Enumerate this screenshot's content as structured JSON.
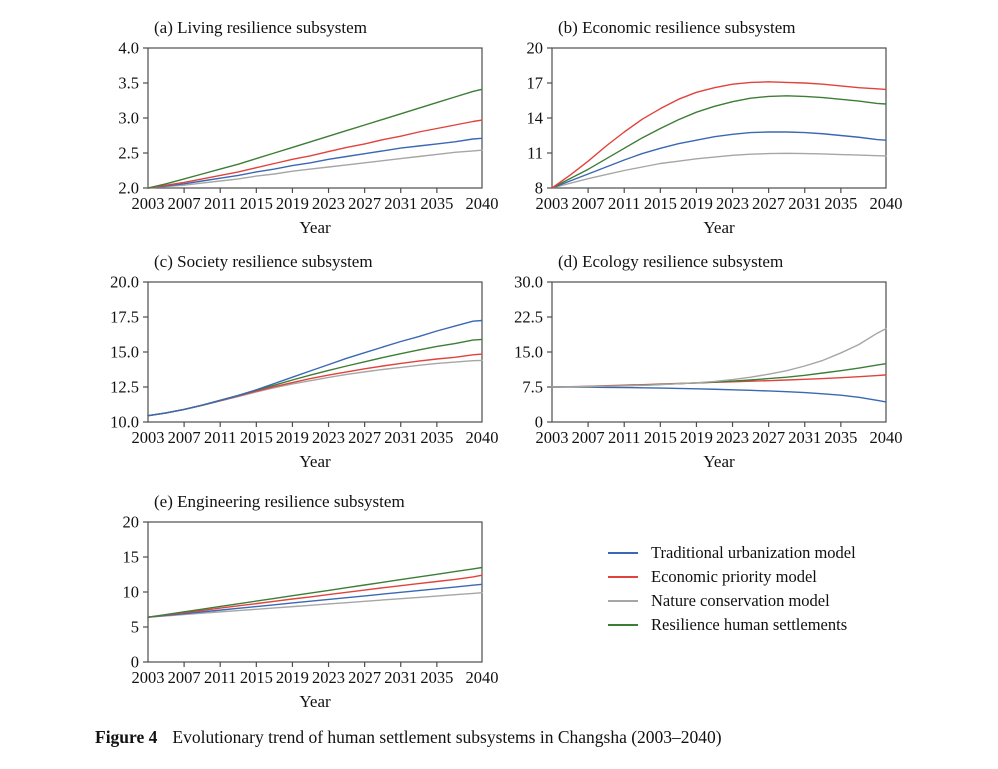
{
  "figure": {
    "caption_label": "Figure 4",
    "caption_text": "Evolutionary trend of human settlement subsystems in Changsha (2003–2040)"
  },
  "legend": {
    "items": [
      {
        "label": "Traditional urbanization model",
        "color": "blue"
      },
      {
        "label": "Economic priority model",
        "color": "red"
      },
      {
        "label": "Nature conservation model",
        "color": "gray"
      },
      {
        "label": "Resilience human settlements",
        "color": "green"
      }
    ]
  },
  "colors": {
    "blue": "#3A68B4",
    "red": "#E2423C",
    "gray": "#A6A6A6",
    "green": "#3C7E36",
    "axis": "#4D4D4D"
  },
  "chart_data": [
    {
      "id": "a",
      "type": "line",
      "title": "(a) Living resilience subsystem",
      "xlabel": "Year",
      "xlim": [
        2003,
        2040
      ],
      "xticks": [
        2003,
        2007,
        2011,
        2015,
        2019,
        2023,
        2027,
        2031,
        2035,
        2040
      ],
      "xtick_labels": [
        "2003",
        "2007",
        "2011",
        "2015",
        "2019",
        "2023",
        "2027",
        "2031",
        "2035",
        "2040"
      ],
      "ylim": [
        2.0,
        4.0
      ],
      "yticks": [
        2.0,
        2.5,
        3.0,
        3.5,
        4.0
      ],
      "ytick_labels": [
        "2.0",
        "2.5",
        "3.0",
        "3.5",
        "4.0"
      ],
      "x": [
        2003,
        2005,
        2007,
        2009,
        2011,
        2013,
        2015,
        2017,
        2019,
        2021,
        2023,
        2025,
        2027,
        2029,
        2031,
        2033,
        2035,
        2037,
        2039,
        2040
      ],
      "series": [
        {
          "name": "Nature conservation model",
          "color": "gray",
          "values": [
            2.0,
            2.02,
            2.04,
            2.07,
            2.1,
            2.13,
            2.17,
            2.2,
            2.24,
            2.27,
            2.3,
            2.33,
            2.36,
            2.39,
            2.42,
            2.45,
            2.48,
            2.51,
            2.53,
            2.54
          ]
        },
        {
          "name": "Traditional urbanization model",
          "color": "blue",
          "values": [
            2.0,
            2.03,
            2.06,
            2.1,
            2.14,
            2.18,
            2.23,
            2.27,
            2.32,
            2.36,
            2.41,
            2.45,
            2.49,
            2.53,
            2.57,
            2.6,
            2.63,
            2.66,
            2.7,
            2.71
          ]
        },
        {
          "name": "Economic priority model",
          "color": "red",
          "values": [
            2.0,
            2.04,
            2.08,
            2.13,
            2.18,
            2.23,
            2.29,
            2.35,
            2.41,
            2.46,
            2.52,
            2.58,
            2.63,
            2.69,
            2.74,
            2.8,
            2.85,
            2.9,
            2.95,
            2.97
          ]
        },
        {
          "name": "Resilience human settlements",
          "color": "green",
          "values": [
            2.0,
            2.06,
            2.13,
            2.2,
            2.27,
            2.34,
            2.42,
            2.5,
            2.58,
            2.66,
            2.74,
            2.82,
            2.9,
            2.98,
            3.06,
            3.14,
            3.22,
            3.3,
            3.38,
            3.41
          ]
        }
      ]
    },
    {
      "id": "b",
      "type": "line",
      "title": "(b) Economic resilience subsystem",
      "xlabel": "Year",
      "xlim": [
        2003,
        2040
      ],
      "xticks": [
        2003,
        2007,
        2011,
        2015,
        2019,
        2023,
        2027,
        2031,
        2035,
        2040
      ],
      "xtick_labels": [
        "2003",
        "2007",
        "2011",
        "2015",
        "2019",
        "2023",
        "2027",
        "2031",
        "2035",
        "2040"
      ],
      "ylim": [
        8,
        20
      ],
      "yticks": [
        8,
        11,
        14,
        17,
        20
      ],
      "ytick_labels": [
        "8",
        "11",
        "14",
        "17",
        "20"
      ],
      "x": [
        2003,
        2005,
        2007,
        2009,
        2011,
        2013,
        2015,
        2017,
        2019,
        2021,
        2023,
        2025,
        2027,
        2029,
        2031,
        2033,
        2035,
        2037,
        2039,
        2040
      ],
      "series": [
        {
          "name": "Nature conservation model",
          "color": "gray",
          "values": [
            8.0,
            8.4,
            8.8,
            9.15,
            9.5,
            9.8,
            10.1,
            10.3,
            10.5,
            10.65,
            10.8,
            10.9,
            10.95,
            10.97,
            10.95,
            10.92,
            10.87,
            10.82,
            10.77,
            10.75
          ]
        },
        {
          "name": "Traditional urbanization model",
          "color": "blue",
          "values": [
            8.0,
            8.6,
            9.2,
            9.8,
            10.4,
            10.95,
            11.4,
            11.8,
            12.1,
            12.4,
            12.6,
            12.75,
            12.8,
            12.8,
            12.75,
            12.65,
            12.5,
            12.35,
            12.15,
            12.1
          ]
        },
        {
          "name": "Resilience human settlements",
          "color": "green",
          "values": [
            8.0,
            8.8,
            9.6,
            10.5,
            11.4,
            12.3,
            13.1,
            13.85,
            14.5,
            15.0,
            15.4,
            15.7,
            15.85,
            15.9,
            15.85,
            15.75,
            15.6,
            15.45,
            15.25,
            15.2
          ]
        },
        {
          "name": "Economic priority model",
          "color": "red",
          "values": [
            8.0,
            9.1,
            10.3,
            11.6,
            12.8,
            13.9,
            14.8,
            15.6,
            16.2,
            16.6,
            16.9,
            17.05,
            17.1,
            17.05,
            17.0,
            16.9,
            16.75,
            16.6,
            16.5,
            16.45
          ]
        }
      ]
    },
    {
      "id": "c",
      "type": "line",
      "title": "(c) Society resilience subsystem",
      "xlabel": "Year",
      "xlim": [
        2003,
        2040
      ],
      "xticks": [
        2003,
        2007,
        2011,
        2015,
        2019,
        2023,
        2027,
        2031,
        2035,
        2040
      ],
      "xtick_labels": [
        "2003",
        "2007",
        "2011",
        "2015",
        "2019",
        "2023",
        "2027",
        "2031",
        "2035",
        "2040"
      ],
      "ylim": [
        10.0,
        20.0
      ],
      "yticks": [
        10.0,
        12.5,
        15.0,
        17.5,
        20.0
      ],
      "ytick_labels": [
        "10.0",
        "12.5",
        "15.0",
        "17.5",
        "20.0"
      ],
      "x": [
        2003,
        2005,
        2007,
        2009,
        2011,
        2013,
        2015,
        2017,
        2019,
        2021,
        2023,
        2025,
        2027,
        2029,
        2031,
        2033,
        2035,
        2037,
        2039,
        2040
      ],
      "series": [
        {
          "name": "Nature conservation model",
          "color": "gray",
          "values": [
            10.45,
            10.65,
            10.9,
            11.18,
            11.5,
            11.82,
            12.15,
            12.45,
            12.72,
            12.95,
            13.18,
            13.4,
            13.58,
            13.75,
            13.9,
            14.05,
            14.18,
            14.28,
            14.38,
            14.4
          ]
        },
        {
          "name": "Economic priority model",
          "color": "red",
          "values": [
            10.45,
            10.65,
            10.9,
            11.2,
            11.52,
            11.86,
            12.2,
            12.52,
            12.82,
            13.1,
            13.35,
            13.58,
            13.8,
            14.0,
            14.18,
            14.35,
            14.5,
            14.62,
            14.8,
            14.85
          ]
        },
        {
          "name": "Resilience human settlements",
          "color": "green",
          "values": [
            10.45,
            10.65,
            10.9,
            11.2,
            11.55,
            11.9,
            12.28,
            12.63,
            13.0,
            13.35,
            13.68,
            14.0,
            14.3,
            14.6,
            14.88,
            15.15,
            15.4,
            15.6,
            15.85,
            15.9
          ]
        },
        {
          "name": "Traditional urbanization model",
          "color": "blue",
          "values": [
            10.45,
            10.65,
            10.9,
            11.2,
            11.55,
            11.9,
            12.3,
            12.75,
            13.2,
            13.65,
            14.1,
            14.55,
            14.95,
            15.35,
            15.75,
            16.1,
            16.5,
            16.85,
            17.2,
            17.25
          ]
        }
      ]
    },
    {
      "id": "d",
      "type": "line",
      "title": "(d) Ecology resilience subsystem",
      "xlabel": "Year",
      "xlim": [
        2003,
        2040
      ],
      "xticks": [
        2003,
        2007,
        2011,
        2015,
        2019,
        2023,
        2027,
        2031,
        2035,
        2040
      ],
      "xtick_labels": [
        "2003",
        "2007",
        "2011",
        "2015",
        "2019",
        "2023",
        "2027",
        "2031",
        "2035",
        "2040"
      ],
      "ylim": [
        0,
        30.0
      ],
      "yticks": [
        0,
        7.5,
        15.0,
        22.5,
        30.0
      ],
      "ytick_labels": [
        "0",
        "7.5",
        "15.0",
        "22.5",
        "30.0"
      ],
      "x": [
        2003,
        2005,
        2007,
        2009,
        2011,
        2013,
        2015,
        2017,
        2019,
        2021,
        2023,
        2025,
        2027,
        2029,
        2031,
        2033,
        2035,
        2037,
        2039,
        2040
      ],
      "series": [
        {
          "name": "Traditional urbanization model",
          "color": "blue",
          "values": [
            7.5,
            7.48,
            7.45,
            7.42,
            7.38,
            7.33,
            7.28,
            7.2,
            7.12,
            7.02,
            6.9,
            6.78,
            6.65,
            6.5,
            6.3,
            6.05,
            5.75,
            5.3,
            4.65,
            4.3
          ]
        },
        {
          "name": "Economic priority model",
          "color": "red",
          "values": [
            7.5,
            7.57,
            7.65,
            7.77,
            7.88,
            8.0,
            8.12,
            8.25,
            8.38,
            8.5,
            8.62,
            8.75,
            8.85,
            9.0,
            9.15,
            9.3,
            9.5,
            9.7,
            9.95,
            10.1
          ]
        },
        {
          "name": "Resilience human settlements",
          "color": "green",
          "values": [
            7.5,
            7.55,
            7.6,
            7.68,
            7.78,
            7.9,
            8.05,
            8.2,
            8.38,
            8.55,
            8.78,
            9.0,
            9.3,
            9.6,
            10.0,
            10.5,
            11.0,
            11.55,
            12.2,
            12.5
          ]
        },
        {
          "name": "Nature conservation model",
          "color": "gray",
          "values": [
            7.5,
            7.55,
            7.6,
            7.68,
            7.75,
            7.85,
            8.0,
            8.2,
            8.4,
            8.7,
            9.1,
            9.6,
            10.25,
            11.0,
            12.0,
            13.2,
            14.8,
            16.6,
            19.0,
            20.0
          ]
        }
      ]
    },
    {
      "id": "e",
      "type": "line",
      "title": "(e) Engineering resilience subsystem",
      "xlabel": "Year",
      "xlim": [
        2003,
        2040
      ],
      "xticks": [
        2003,
        2007,
        2011,
        2015,
        2019,
        2023,
        2027,
        2031,
        2035,
        2040
      ],
      "xtick_labels": [
        "2003",
        "2007",
        "2011",
        "2015",
        "2019",
        "2023",
        "2027",
        "2031",
        "2035",
        "2040"
      ],
      "ylim": [
        0,
        20
      ],
      "yticks": [
        0,
        5,
        10,
        15,
        20
      ],
      "ytick_labels": [
        "0",
        "5",
        "10",
        "15",
        "20"
      ],
      "x": [
        2003,
        2005,
        2007,
        2009,
        2011,
        2013,
        2015,
        2017,
        2019,
        2021,
        2023,
        2025,
        2027,
        2029,
        2031,
        2033,
        2035,
        2037,
        2039,
        2040
      ],
      "series": [
        {
          "name": "Nature conservation model",
          "color": "gray",
          "values": [
            6.4,
            6.59,
            6.78,
            6.97,
            7.16,
            7.35,
            7.53,
            7.72,
            7.91,
            8.1,
            8.29,
            8.48,
            8.67,
            8.86,
            9.04,
            9.23,
            9.42,
            9.61,
            9.8,
            9.9
          ]
        },
        {
          "name": "Traditional urbanization model",
          "color": "blue",
          "values": [
            6.4,
            6.65,
            6.9,
            7.16,
            7.41,
            7.67,
            7.92,
            8.17,
            8.43,
            8.68,
            8.94,
            9.19,
            9.44,
            9.7,
            9.95,
            10.21,
            10.46,
            10.71,
            10.97,
            11.1
          ]
        },
        {
          "name": "Economic priority model",
          "color": "red",
          "values": [
            6.4,
            6.72,
            7.05,
            7.37,
            7.7,
            8.02,
            8.34,
            8.67,
            9.0,
            9.3,
            9.63,
            9.95,
            10.27,
            10.6,
            10.9,
            11.2,
            11.5,
            11.8,
            12.15,
            12.4
          ]
        },
        {
          "name": "Resilience human settlements",
          "color": "green",
          "values": [
            6.4,
            6.78,
            7.17,
            7.55,
            7.93,
            8.32,
            8.7,
            9.08,
            9.47,
            9.85,
            10.23,
            10.62,
            11.0,
            11.38,
            11.77,
            12.15,
            12.53,
            12.92,
            13.3,
            13.5
          ]
        }
      ]
    }
  ]
}
